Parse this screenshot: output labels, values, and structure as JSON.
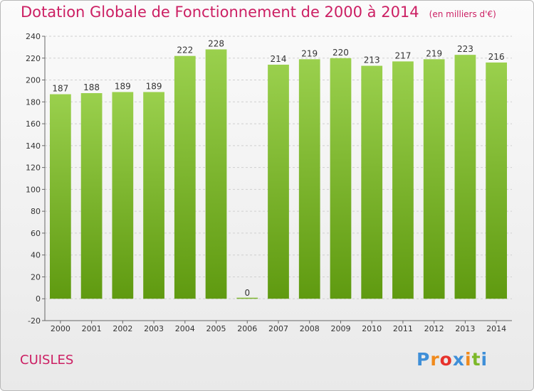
{
  "header": {
    "title": "Dotation Globale de Fonctionnement de 2000 à 2014",
    "subtitle": "(en milliers d'€)"
  },
  "footer": {
    "commune": "CUISLES",
    "logo_text": "Proxiti"
  },
  "colors": {
    "accent": "#cc1f63",
    "bar_top": "#9ad04d",
    "bar_bottom": "#5f9a10"
  },
  "chart_data": {
    "type": "bar",
    "categories": [
      "2000",
      "2001",
      "2002",
      "2003",
      "2004",
      "2005",
      "2006",
      "2007",
      "2008",
      "2009",
      "2010",
      "2011",
      "2012",
      "2013",
      "2014"
    ],
    "values": [
      187,
      188,
      189,
      189,
      222,
      228,
      0,
      214,
      219,
      220,
      213,
      217,
      219,
      223,
      216
    ],
    "ylim": [
      -20,
      240
    ],
    "yticks": [
      -20,
      0,
      20,
      40,
      60,
      80,
      100,
      120,
      140,
      160,
      180,
      200,
      220,
      240
    ],
    "grid": true
  }
}
